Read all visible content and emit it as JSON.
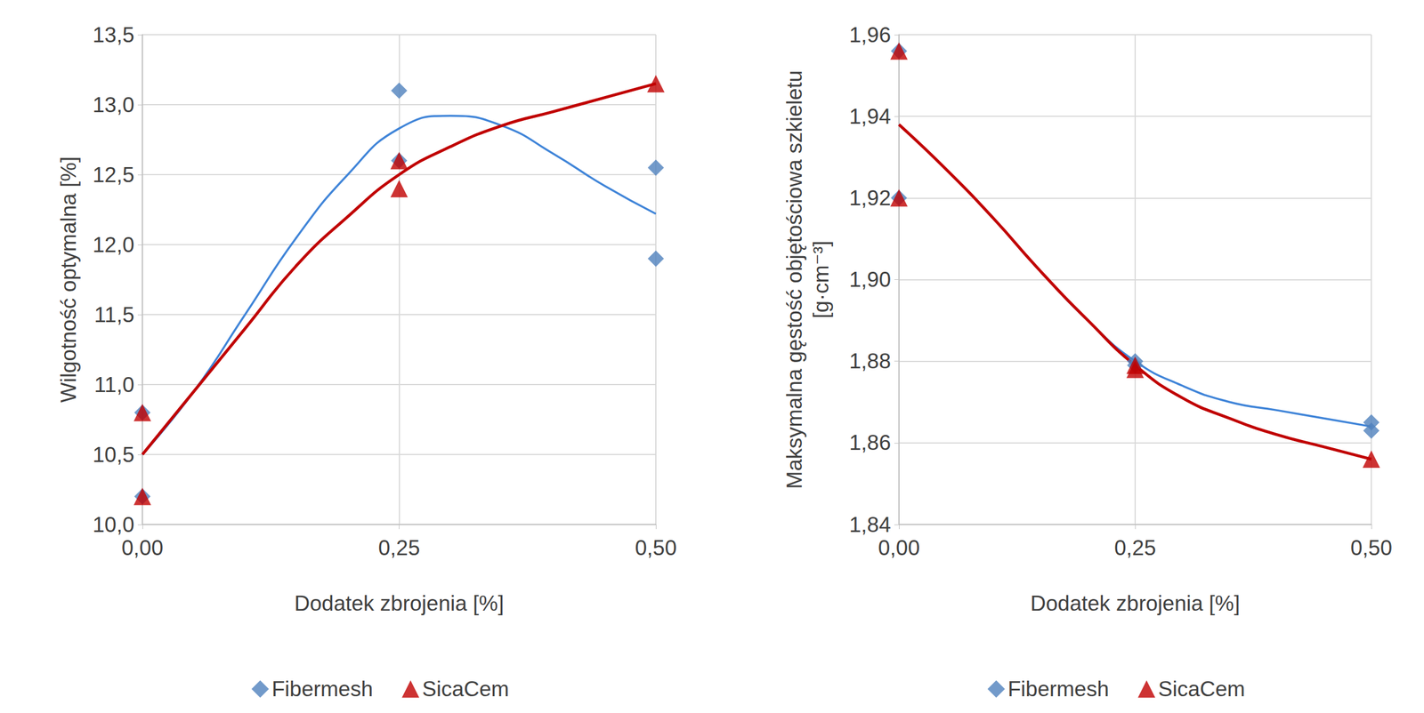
{
  "chart_data": [
    {
      "type": "scatter",
      "x_label": "Dodatek zbrojenia [%]",
      "y_label": "Wilgotność optymalna [%]",
      "xlim": [
        0,
        0.5
      ],
      "xticks": [
        {
          "value": 0,
          "label": "0,00"
        },
        {
          "value": 0.25,
          "label": "0,25"
        },
        {
          "value": 0.5,
          "label": "0,50"
        }
      ],
      "ylim": [
        10,
        13.5
      ],
      "yticks": [
        {
          "value": 10,
          "label": "10,0"
        },
        {
          "value": 10.5,
          "label": "10,5"
        },
        {
          "value": 11,
          "label": "11,0"
        },
        {
          "value": 11.5,
          "label": "11,5"
        },
        {
          "value": 12,
          "label": "12,0"
        },
        {
          "value": 12.5,
          "label": "12,5"
        },
        {
          "value": 13,
          "label": "13,0"
        },
        {
          "value": 13.5,
          "label": "13,5"
        }
      ],
      "grid": true,
      "legend": "bottom",
      "series": [
        {
          "name": "Fibermesh",
          "type": "scatter",
          "color": "#4f81bd",
          "marker": "diamond",
          "x": [
            0,
            0,
            0.25,
            0.25,
            0.5,
            0.5
          ],
          "values": [
            10.8,
            10.2,
            13.1,
            12.6,
            12.55,
            11.9
          ]
        },
        {
          "name": "SicaCem",
          "type": "scatter",
          "color": "#c00000",
          "marker": "triangle",
          "x": [
            0,
            0,
            0.25,
            0.25,
            0.5
          ],
          "values": [
            10.8,
            10.2,
            12.6,
            12.4,
            13.15
          ]
        },
        {
          "name": "Fibermesh",
          "type": "line",
          "color": "#3f84d8",
          "line_style": "solid",
          "x": [
            0,
            0.05,
            0.1,
            0.15,
            0.2,
            0.25,
            0.3,
            0.35,
            0.4,
            0.45,
            0.5
          ],
          "values": [
            10.5,
            10.95,
            11.5,
            12.05,
            12.5,
            12.83,
            12.92,
            12.85,
            12.65,
            12.42,
            12.22
          ]
        },
        {
          "name": "SicaCem",
          "type": "line",
          "color": "#c00000",
          "line_style": "solid",
          "x": [
            0,
            0.05,
            0.1,
            0.15,
            0.2,
            0.25,
            0.3,
            0.35,
            0.4,
            0.45,
            0.5
          ],
          "values": [
            10.5,
            10.95,
            11.4,
            11.85,
            12.2,
            12.5,
            12.7,
            12.85,
            12.95,
            13.05,
            13.15
          ]
        }
      ]
    },
    {
      "type": "scatter",
      "x_label": "Dodatek zbrojenia [%]",
      "y_label": "Maksymalna gęstość objętościowa szkieletu [g·cm⁻³]",
      "xlim": [
        0,
        0.5
      ],
      "xticks": [
        {
          "value": 0,
          "label": "0,00"
        },
        {
          "value": 0.25,
          "label": "0,25"
        },
        {
          "value": 0.5,
          "label": "0,50"
        }
      ],
      "ylim": [
        1.84,
        1.96
      ],
      "yticks": [
        {
          "value": 1.84,
          "label": "1,84"
        },
        {
          "value": 1.86,
          "label": "1,86"
        },
        {
          "value": 1.88,
          "label": "1,88"
        },
        {
          "value": 1.9,
          "label": "1,90"
        },
        {
          "value": 1.92,
          "label": "1,92"
        },
        {
          "value": 1.94,
          "label": "1,94"
        },
        {
          "value": 1.96,
          "label": "1,96"
        }
      ],
      "grid": true,
      "legend": "bottom",
      "series": [
        {
          "name": "Fibermesh",
          "type": "scatter",
          "color": "#4f81bd",
          "marker": "diamond",
          "x": [
            0,
            0,
            0.25,
            0.25,
            0.5,
            0.5
          ],
          "values": [
            1.956,
            1.92,
            1.88,
            1.879,
            1.865,
            1.863
          ]
        },
        {
          "name": "SicaCem",
          "type": "scatter",
          "color": "#c00000",
          "marker": "triangle",
          "x": [
            0,
            0,
            0.25,
            0.25,
            0.5
          ],
          "values": [
            1.956,
            1.92,
            1.879,
            1.878,
            1.856
          ]
        },
        {
          "name": "Fibermesh",
          "type": "line",
          "color": "#3f84d8",
          "line_style": "solid",
          "x": [
            0,
            0.05,
            0.1,
            0.15,
            0.2,
            0.25,
            0.3,
            0.35,
            0.4,
            0.45,
            0.5
          ],
          "values": [
            1.938,
            1.927,
            1.915,
            1.902,
            1.89,
            1.88,
            1.874,
            1.87,
            1.868,
            1.866,
            1.864
          ]
        },
        {
          "name": "SicaCem",
          "type": "line",
          "color": "#c00000",
          "line_style": "solid",
          "x": [
            0,
            0.05,
            0.1,
            0.15,
            0.2,
            0.25,
            0.3,
            0.35,
            0.4,
            0.45,
            0.5
          ],
          "values": [
            1.938,
            1.927,
            1.915,
            1.902,
            1.89,
            1.879,
            1.871,
            1.866,
            1.862,
            1.859,
            1.856
          ]
        }
      ]
    }
  ]
}
